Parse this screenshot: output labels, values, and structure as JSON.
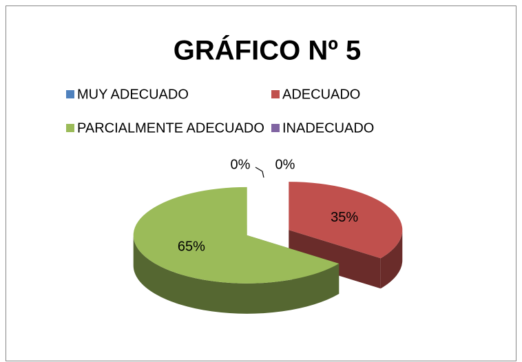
{
  "chart_data": {
    "type": "pie",
    "title": "GRÁFICO Nº 5",
    "categories": [
      "MUY ADECUADO",
      "ADECUADO",
      "PARCIALMENTE ADECUADO",
      "INADECUADO"
    ],
    "values": [
      0,
      35,
      65,
      0
    ],
    "value_labels": [
      "0%",
      "35%",
      "65%",
      "0%"
    ],
    "colors": [
      "#4f81bd",
      "#c0504d",
      "#9bbb59",
      "#8064a2"
    ],
    "legend": "top"
  }
}
